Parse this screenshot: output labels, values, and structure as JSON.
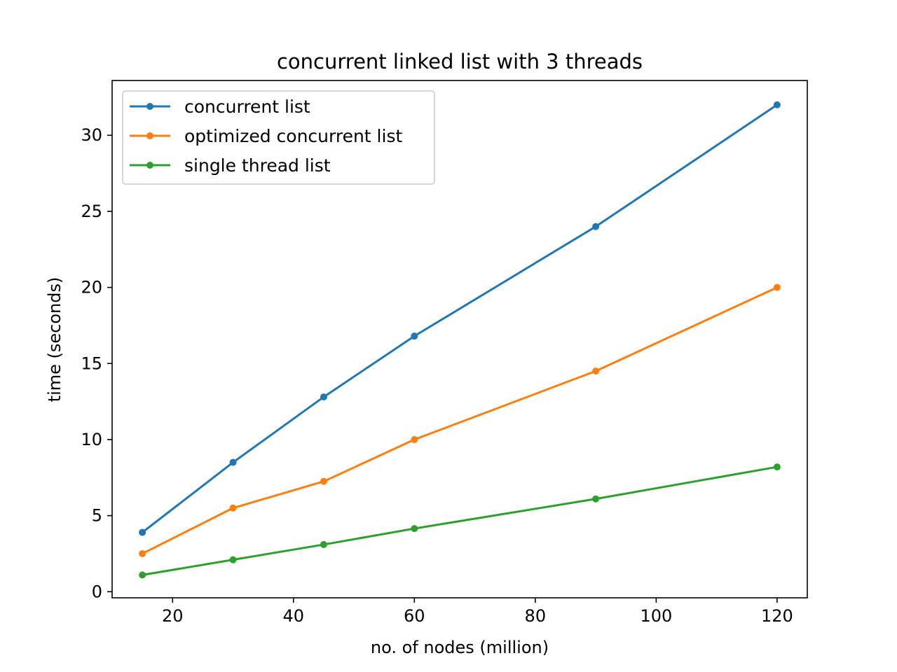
{
  "chart_data": {
    "type": "line",
    "title": "concurrent linked list with 3 threads",
    "xlabel": "no. of nodes (million)",
    "ylabel": "time (seconds)",
    "x": [
      15,
      30,
      45,
      60,
      90,
      120
    ],
    "xlim": [
      10,
      125
    ],
    "ylim": [
      -0.4,
      33.6
    ],
    "xticks": [
      20,
      40,
      60,
      80,
      100,
      120
    ],
    "yticks": [
      0,
      5,
      10,
      15,
      20,
      25,
      30
    ],
    "grid": false,
    "legend_position": "upper-left",
    "series": [
      {
        "name": "concurrent list",
        "color": "#1f77b4",
        "values": [
          3.9,
          8.5,
          12.8,
          16.8,
          24.0,
          32.0
        ]
      },
      {
        "name": "optimized concurrent list",
        "color": "#ff7f0e",
        "values": [
          2.5,
          5.5,
          7.25,
          10.0,
          14.5,
          20.0
        ]
      },
      {
        "name": "single thread list",
        "color": "#2ca02c",
        "values": [
          1.1,
          2.1,
          3.1,
          4.15,
          6.1,
          8.2
        ]
      }
    ]
  }
}
